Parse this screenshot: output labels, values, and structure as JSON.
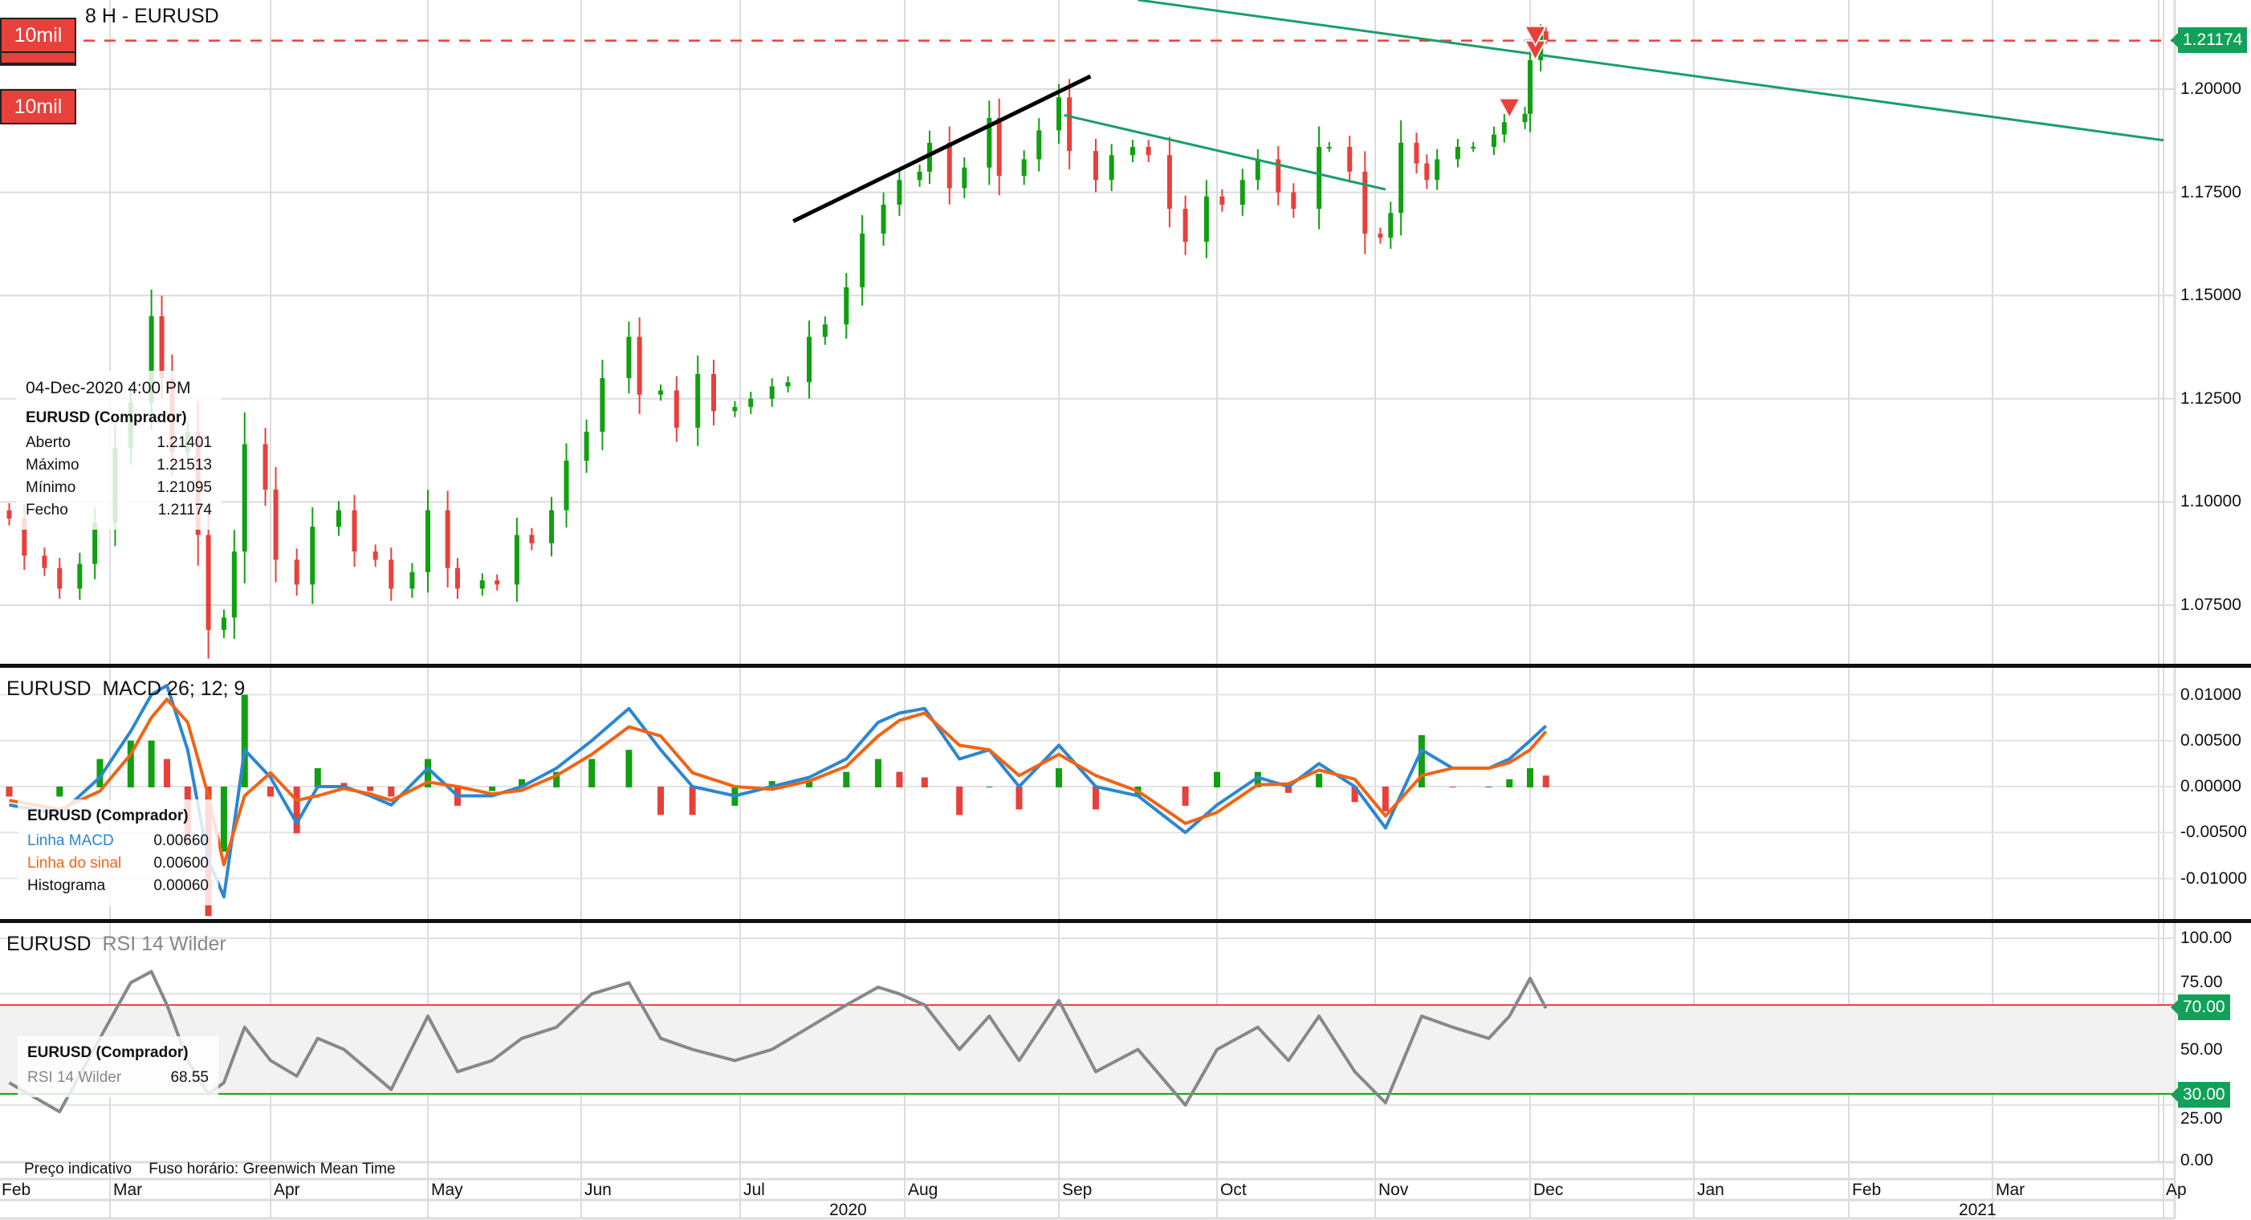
{
  "header": {
    "title": "8 H - EURUSD"
  },
  "order_buttons": [
    {
      "label": "10mil"
    },
    {
      "label": "10mil"
    }
  ],
  "price_pane": {
    "current_price": "1.21174",
    "y_ticks": [
      "1.20000",
      "1.17500",
      "1.15000",
      "1.12500",
      "1.10000",
      "1.07500"
    ],
    "tooltip": {
      "datetime": "04-Dec-2020 4:00 PM",
      "instrument": "EURUSD (Comprador)",
      "rows": [
        {
          "label": "Aberto",
          "value": "1.21401"
        },
        {
          "label": "Máximo",
          "value": "1.21513"
        },
        {
          "label": "Mínimo",
          "value": "1.21095"
        },
        {
          "label": "Fecho",
          "value": "1.21174"
        }
      ]
    }
  },
  "macd_pane": {
    "symbol": "EURUSD",
    "title": "MACD 26; 12; 9",
    "y_ticks": [
      "0.01000",
      "0.00500",
      "0.00000",
      "-0.00500",
      "-0.01000"
    ],
    "tooltip": {
      "instrument": "EURUSD (Comprador)",
      "rows": [
        {
          "label": "Linha MACD",
          "value": "0.00660"
        },
        {
          "label": "Linha do sinal",
          "value": "0.00600"
        },
        {
          "label": "Histograma",
          "value": "0.00060"
        }
      ]
    }
  },
  "rsi_pane": {
    "symbol": "EURUSD",
    "title": "RSI 14 Wilder",
    "y_ticks": [
      "100.00",
      "75.00",
      "50.00",
      "25.00",
      "0.00"
    ],
    "upper_tag": "70.00",
    "lower_tag": "30.00",
    "tooltip": {
      "instrument": "EURUSD (Comprador)",
      "rows": [
        {
          "label": "RSI 14 Wilder",
          "value": "68.55"
        }
      ]
    }
  },
  "footer": {
    "indicative": "Preço indicativo",
    "timezone": "Fuso horário: Greenwich Mean Time"
  },
  "time_axis": {
    "months": [
      "Feb",
      "Mar",
      "Apr",
      "May",
      "Jun",
      "Jul",
      "Aug",
      "Sep",
      "Oct",
      "Nov",
      "Dec",
      "Jan",
      "Feb",
      "Mar",
      "Ap"
    ],
    "years": [
      "2020",
      "2021"
    ]
  },
  "colors": {
    "up": "#10a010",
    "down": "#e8403a",
    "macd": "#2b87d1",
    "signal": "#f06414",
    "rsi": "#888888",
    "tag": "#13a05a",
    "trendline": "#1a9e6a"
  },
  "chart_data": [
    {
      "type": "candlestick",
      "title": "8 H - EURUSD",
      "ylim": [
        1.0625,
        1.2225
      ],
      "last_candle": {
        "date": "2020-12-04",
        "open": 1.21401,
        "high": 1.21513,
        "low": 1.21095,
        "close": 1.21174
      },
      "dates": [
        "2020-02-10",
        "2020-02-13",
        "2020-02-17",
        "2020-02-20",
        "2020-02-24",
        "2020-02-27",
        "2020-03-02",
        "2020-03-05",
        "2020-03-09",
        "2020-03-11",
        "2020-03-13",
        "2020-03-16",
        "2020-03-18",
        "2020-03-20",
        "2020-03-23",
        "2020-03-25",
        "2020-03-27",
        "2020-03-31",
        "2020-04-02",
        "2020-04-06",
        "2020-04-09",
        "2020-04-14",
        "2020-04-17",
        "2020-04-21",
        "2020-04-24",
        "2020-04-28",
        "2020-05-01",
        "2020-05-05",
        "2020-05-07",
        "2020-05-12",
        "2020-05-15",
        "2020-05-19",
        "2020-05-22",
        "2020-05-26",
        "2020-05-29",
        "2020-06-02",
        "2020-06-05",
        "2020-06-10",
        "2020-06-12",
        "2020-06-16",
        "2020-06-19",
        "2020-06-23",
        "2020-06-26",
        "2020-06-30",
        "2020-07-03",
        "2020-07-07",
        "2020-07-10",
        "2020-07-14",
        "2020-07-17",
        "2020-07-21",
        "2020-07-24",
        "2020-07-28",
        "2020-07-31",
        "2020-08-04",
        "2020-08-06",
        "2020-08-10",
        "2020-08-13",
        "2020-08-18",
        "2020-08-20",
        "2020-08-25",
        "2020-08-28",
        "2020-09-01",
        "2020-09-03",
        "2020-09-08",
        "2020-09-11",
        "2020-09-15",
        "2020-09-18",
        "2020-09-22",
        "2020-09-25",
        "2020-09-29",
        "2020-10-02",
        "2020-10-06",
        "2020-10-09",
        "2020-10-13",
        "2020-10-16",
        "2020-10-21",
        "2020-10-23",
        "2020-10-27",
        "2020-10-30",
        "2020-11-02",
        "2020-11-04",
        "2020-11-06",
        "2020-11-09",
        "2020-11-11",
        "2020-11-13",
        "2020-11-17",
        "2020-11-20",
        "2020-11-24",
        "2020-11-26",
        "2020-11-30",
        "2020-12-01",
        "2020-12-03"
      ],
      "close": [
        1.096,
        1.087,
        1.084,
        1.079,
        1.085,
        1.095,
        1.113,
        1.124,
        1.145,
        1.13,
        1.112,
        1.117,
        1.092,
        1.069,
        1.072,
        1.088,
        1.114,
        1.103,
        1.086,
        1.08,
        1.094,
        1.098,
        1.088,
        1.086,
        1.079,
        1.083,
        1.098,
        1.084,
        1.079,
        1.081,
        1.08,
        1.092,
        1.09,
        1.098,
        1.11,
        1.117,
        1.13,
        1.14,
        1.126,
        1.127,
        1.118,
        1.131,
        1.122,
        1.123,
        1.125,
        1.128,
        1.129,
        1.14,
        1.143,
        1.152,
        1.165,
        1.172,
        1.178,
        1.18,
        1.187,
        1.176,
        1.181,
        1.193,
        1.179,
        1.183,
        1.19,
        1.198,
        1.185,
        1.178,
        1.184,
        1.186,
        1.184,
        1.171,
        1.163,
        1.174,
        1.172,
        1.178,
        1.183,
        1.175,
        1.171,
        1.186,
        1.186,
        1.18,
        1.165,
        1.164,
        1.17,
        1.187,
        1.182,
        1.178,
        1.183,
        1.186,
        1.186,
        1.189,
        1.192,
        1.194,
        1.207,
        1.213
      ],
      "trendlines": [
        {
          "color": "black",
          "from": {
            "date": "2020-07-11",
            "price": 1.168
          },
          "to": {
            "date": "2020-09-07",
            "price": 1.2031
          }
        },
        {
          "color": "green",
          "from": {
            "date": "2020-09-02",
            "price": 1.1937
          },
          "to": {
            "date": "2020-11-03",
            "price": 1.1757
          }
        },
        {
          "color": "green",
          "from": {
            "date": "2020-09-16",
            "price": 1.2216
          },
          "to": {
            "date": "2021-04-01",
            "price": 1.1876
          }
        }
      ],
      "sell_markers": [
        {
          "date": "2020-11-27",
          "price": 1.195
        },
        {
          "date": "2020-12-02",
          "price": 1.209
        },
        {
          "date": "2020-12-02",
          "price": 1.2125
        }
      ],
      "price_line": 1.21174
    },
    {
      "type": "line",
      "title": "MACD 26; 12; 9",
      "ylim": [
        -0.0135,
        0.013
      ],
      "dates": [
        "2020-02-10",
        "2020-02-20",
        "2020-02-28",
        "2020-03-05",
        "2020-03-09",
        "2020-03-12",
        "2020-03-16",
        "2020-03-20",
        "2020-03-23",
        "2020-03-27",
        "2020-04-01",
        "2020-04-06",
        "2020-04-10",
        "2020-04-15",
        "2020-04-20",
        "2020-04-24",
        "2020-05-01",
        "2020-05-07",
        "2020-05-14",
        "2020-05-20",
        "2020-05-27",
        "2020-06-03",
        "2020-06-10",
        "2020-06-16",
        "2020-06-22",
        "2020-06-30",
        "2020-07-07",
        "2020-07-14",
        "2020-07-21",
        "2020-07-27",
        "2020-07-31",
        "2020-08-05",
        "2020-08-12",
        "2020-08-18",
        "2020-08-24",
        "2020-09-01",
        "2020-09-08",
        "2020-09-16",
        "2020-09-25",
        "2020-10-01",
        "2020-10-09",
        "2020-10-15",
        "2020-10-21",
        "2020-10-28",
        "2020-11-03",
        "2020-11-10",
        "2020-11-16",
        "2020-11-23",
        "2020-11-27",
        "2020-12-01",
        "2020-12-04"
      ],
      "series": [
        {
          "name": "Linha MACD",
          "values": [
            -0.002,
            -0.003,
            0.001,
            0.006,
            0.01,
            0.011,
            0.004,
            -0.008,
            -0.012,
            0.004,
            0.001,
            -0.004,
            0.0,
            0.0,
            -0.001,
            -0.002,
            0.002,
            -0.001,
            -0.001,
            0.0,
            0.002,
            0.005,
            0.0085,
            0.004,
            0.0,
            -0.001,
            0.0,
            0.001,
            0.003,
            0.007,
            0.008,
            0.0085,
            0.003,
            0.004,
            0.0,
            0.0045,
            0.0,
            -0.001,
            -0.005,
            -0.002,
            0.001,
            0.0,
            0.0025,
            0.0,
            -0.0045,
            0.004,
            0.002,
            0.002,
            0.003,
            0.005,
            0.0066
          ]
        },
        {
          "name": "Linha do sinal",
          "values": [
            -0.0015,
            -0.0025,
            -0.0005,
            0.0035,
            0.0075,
            0.0095,
            0.007,
            -0.001,
            -0.0085,
            -0.001,
            0.0015,
            -0.0015,
            -0.001,
            -0.0002,
            -0.0008,
            -0.0015,
            0.0005,
            0.0,
            -0.0008,
            -0.0004,
            0.0012,
            0.0035,
            0.0065,
            0.0055,
            0.0015,
            0.0,
            -0.0003,
            0.0006,
            0.0022,
            0.0055,
            0.0072,
            0.008,
            0.0045,
            0.004,
            0.0012,
            0.0035,
            0.0012,
            -0.0005,
            -0.004,
            -0.0028,
            0.0002,
            0.0003,
            0.0018,
            0.0008,
            -0.0032,
            0.0012,
            0.002,
            0.002,
            0.0026,
            0.004,
            0.006
          ]
        }
      ]
    },
    {
      "type": "line",
      "title": "RSI 14 Wilder",
      "ylim": [
        0,
        100
      ],
      "levels": [
        70,
        30
      ],
      "dates": [
        "2020-02-10",
        "2020-02-20",
        "2020-02-28",
        "2020-03-05",
        "2020-03-09",
        "2020-03-12",
        "2020-03-16",
        "2020-03-20",
        "2020-03-23",
        "2020-03-27",
        "2020-04-01",
        "2020-04-06",
        "2020-04-10",
        "2020-04-15",
        "2020-04-20",
        "2020-04-24",
        "2020-05-01",
        "2020-05-07",
        "2020-05-14",
        "2020-05-20",
        "2020-05-27",
        "2020-06-03",
        "2020-06-10",
        "2020-06-16",
        "2020-06-22",
        "2020-06-30",
        "2020-07-07",
        "2020-07-14",
        "2020-07-21",
        "2020-07-27",
        "2020-07-31",
        "2020-08-05",
        "2020-08-12",
        "2020-08-18",
        "2020-08-24",
        "2020-09-01",
        "2020-09-08",
        "2020-09-16",
        "2020-09-25",
        "2020-10-01",
        "2020-10-09",
        "2020-10-15",
        "2020-10-21",
        "2020-10-28",
        "2020-11-03",
        "2020-11-10",
        "2020-11-16",
        "2020-11-23",
        "2020-11-27",
        "2020-12-01",
        "2020-12-04"
      ],
      "series": [
        {
          "name": "RSI 14 Wilder",
          "values": [
            35,
            22,
            55,
            80,
            85,
            70,
            45,
            30,
            35,
            60,
            45,
            38,
            55,
            50,
            40,
            32,
            65,
            40,
            45,
            55,
            60,
            75,
            80,
            55,
            50,
            45,
            50,
            60,
            70,
            78,
            75,
            70,
            50,
            65,
            45,
            72,
            40,
            50,
            25,
            50,
            60,
            45,
            65,
            40,
            26,
            65,
            60,
            55,
            65,
            82,
            68.55
          ]
        }
      ]
    }
  ]
}
